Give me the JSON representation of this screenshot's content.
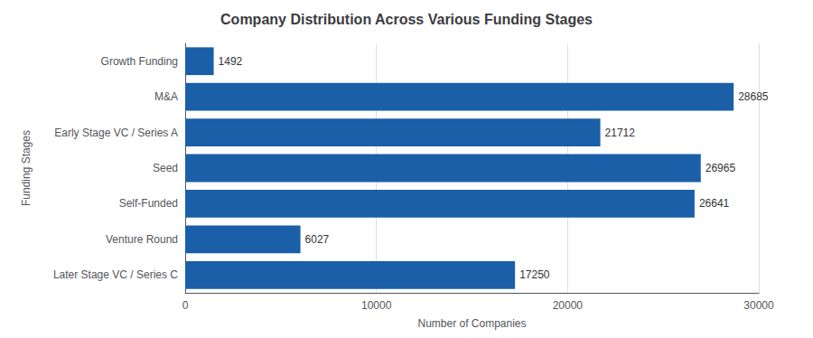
{
  "chart_data": {
    "type": "bar",
    "orientation": "horizontal",
    "title": "Company Distribution Across Various Funding Stages",
    "xlabel": "Number of Companies",
    "ylabel": "Funding Stages",
    "categories": [
      "Growth Funding",
      "M&A",
      "Early Stage VC / Series A",
      "Seed",
      "Self-Funded",
      "Venture Round",
      "Later Stage VC / Series C"
    ],
    "values": [
      1492,
      28685,
      21712,
      26965,
      26641,
      6027,
      17250
    ],
    "color": "#1a5fa8",
    "xlim": [
      0,
      30000
    ],
    "xticks": [
      0,
      10000,
      20000,
      30000
    ],
    "grid": true,
    "data_labels": true
  }
}
